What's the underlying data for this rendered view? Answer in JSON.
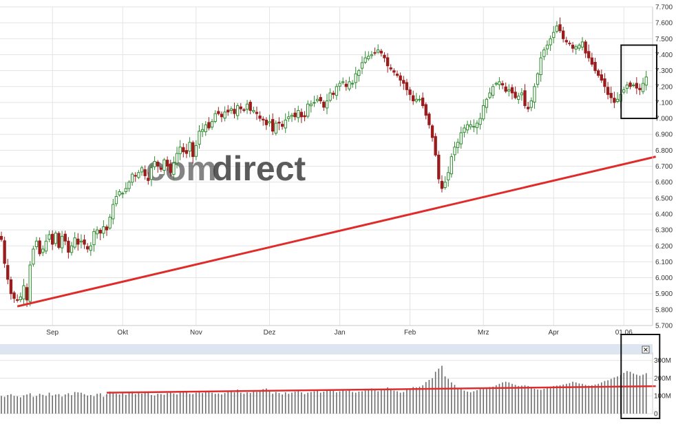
{
  "colors": {
    "up": "#2e8b2e",
    "down": "#9b1c1c",
    "trendline": "#e02b2b",
    "grid": "#e3e3e3",
    "volume_bar": "#6b6b6b",
    "volume_header": "#dde6f0",
    "highlight_box": "#111111",
    "watermark_orange": "#f6c86a",
    "watermark_gray": "#d8d8d8"
  },
  "watermark": {
    "part1": "com",
    "part2": "direct"
  },
  "volume_close_icon": "close-box-icon",
  "chart_data": [
    {
      "type": "candlestick",
      "title": "",
      "ylim": [
        5700,
        7700
      ],
      "y_ticks": [
        "5.700",
        "5.800",
        "5.900",
        "6.000",
        "6.100",
        "6.200",
        "6.300",
        "6.400",
        "6.500",
        "6.600",
        "6.700",
        "6.800",
        "6.900",
        "7.000",
        "7.100",
        "7.200",
        "7.300",
        "7.400",
        "7.500",
        "7.600",
        "7.700"
      ],
      "x_tick_labels": [
        "Sep",
        "Okt",
        "Nov",
        "Dez",
        "Jan",
        "Feb",
        "Mrz",
        "Apr",
        "01.06"
      ],
      "x_tick_session": [
        16,
        38,
        61,
        84,
        106,
        128,
        151,
        173,
        195
      ],
      "session_count": 205,
      "series": [
        {
          "values": [
            6240,
            6090,
            5990,
            5900,
            5870,
            5860,
            5880,
            5950,
            5860,
            6080,
            6180,
            6230,
            6150,
            6180,
            6230,
            6270,
            6210,
            6280,
            6190,
            6260,
            6230,
            6160,
            6200,
            6250,
            6210,
            6230,
            6210,
            6180,
            6200,
            6290,
            6300,
            6280,
            6320,
            6300,
            6380,
            6460,
            6510,
            6540,
            6530,
            6560,
            6600,
            6650,
            6640,
            6660,
            6690,
            6640,
            6610,
            6690,
            6730,
            6700,
            6680,
            6740,
            6700,
            6660,
            6720,
            6780,
            6820,
            6790,
            6780,
            6850,
            6760,
            6830,
            6920,
            6930,
            6960,
            6940,
            6980,
            7030,
            7030,
            7010,
            7040,
            7040,
            7060,
            7030,
            7080,
            7060,
            7050,
            7090,
            7050,
            7050,
            7030,
            7000,
            6990,
            6960,
            6980,
            6920,
            6970,
            6970,
            6950,
            6990,
            7010,
            7020,
            7010,
            7050,
            7010,
            7010,
            7090,
            7090,
            7100,
            7120,
            7110,
            7070,
            7110,
            7160,
            7150,
            7200,
            7220,
            7230,
            7200,
            7230,
            7220,
            7280,
            7300,
            7350,
            7380,
            7390,
            7400,
            7410,
            7430,
            7410,
            7380,
            7330,
            7310,
            7290,
            7270,
            7240,
            7220,
            7180,
            7150,
            7110,
            7120,
            7120,
            7080,
            7020,
            6960,
            6880,
            6770,
            6620,
            6560,
            6600,
            6660,
            6760,
            6820,
            6850,
            6910,
            6940,
            6960,
            6960,
            6950,
            6970,
            7000,
            7080,
            7120,
            7160,
            7200,
            7220,
            7230,
            7210,
            7170,
            7180,
            7160,
            7130,
            7140,
            7160,
            7080,
            7060,
            7110,
            7200,
            7280,
            7380,
            7430,
            7460,
            7500,
            7540,
            7580,
            7550,
            7500,
            7480,
            7470,
            7440,
            7450,
            7460,
            7480,
            7410,
            7380,
            7340,
            7300,
            7270,
            7240,
            7200,
            7150,
            7130,
            7100,
            7120,
            7150,
            7180,
            7210,
            7200,
            7210,
            7190,
            7180,
            7220,
            7260
          ]
        }
      ],
      "trendline": {
        "start": {
          "session": 5,
          "value": 5820
        },
        "end": {
          "session": 205,
          "value": 6760
        }
      }
    },
    {
      "type": "bar",
      "ylim": [
        0,
        330
      ],
      "y_ticks": [
        "0",
        "100M",
        "200M",
        "300M"
      ],
      "series": [
        {
          "values": [
            100,
            95,
            105,
            110,
            100,
            98,
            92,
            103,
            108,
            115,
            95,
            100,
            112,
            106,
            100,
            118,
            102,
            108,
            110,
            96,
            108,
            115,
            104,
            122,
            120,
            118,
            110,
            102,
            105,
            98,
            112,
            115,
            95,
            110,
            124,
            118,
            112,
            108,
            114,
            106,
            120,
            125,
            110,
            116,
            113,
            118,
            124,
            105,
            102,
            112,
            110,
            106,
            116,
            120,
            114,
            108,
            118,
            124,
            126,
            112,
            110,
            118,
            120,
            116,
            124,
            130,
            118,
            112,
            114,
            108,
            116,
            124,
            128,
            120,
            136,
            118,
            112,
            120,
            116,
            124,
            122,
            128,
            138,
            142,
            126,
            112,
            122,
            116,
            108,
            120,
            112,
            118,
            124,
            126,
            120,
            110,
            118,
            122,
            126,
            130,
            118,
            124,
            134,
            138,
            128,
            120,
            126,
            130,
            128,
            136,
            122,
            118,
            124,
            126,
            130,
            138,
            142,
            134,
            126,
            132,
            140,
            148,
            136,
            130,
            126,
            118,
            122,
            134,
            142,
            150,
            148,
            152,
            160,
            178,
            190,
            200,
            236,
            254,
            270,
            210,
            196,
            176,
            162,
            142,
            140,
            130,
            124,
            120,
            126,
            132,
            138,
            142,
            146,
            150,
            152,
            160,
            168,
            176,
            180,
            176,
            168,
            162,
            156,
            158,
            160,
            156,
            148,
            140,
            136,
            134,
            140,
            148,
            152,
            156,
            158,
            160,
            164,
            168,
            172,
            180,
            176,
            170,
            168,
            162,
            158,
            160,
            164,
            168,
            176,
            184,
            188,
            196,
            204,
            210,
            218,
            230,
            240,
            236,
            226,
            220,
            214,
            220,
            228
          ]
        }
      ],
      "trendline": {
        "start": {
          "session": 33,
          "value": 118
        },
        "end": {
          "session": 205,
          "value": 155
        }
      }
    }
  ]
}
